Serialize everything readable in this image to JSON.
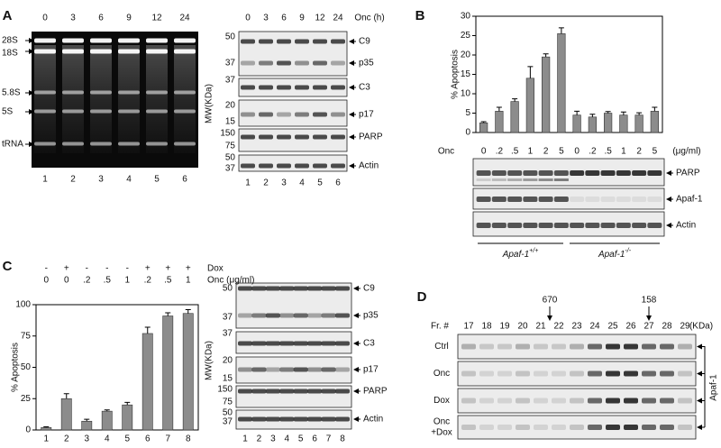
{
  "panel_labels": [
    "A",
    "B",
    "C",
    "D"
  ],
  "panel_a": {
    "gel": {
      "lanes_top": [
        "0",
        "3",
        "6",
        "9",
        "12",
        "24"
      ],
      "rna_labels": [
        "28S",
        "18S",
        "5.8S",
        "5S",
        "tRNA"
      ],
      "lanes_bottom": [
        "1",
        "2",
        "3",
        "4",
        "5",
        "6"
      ]
    },
    "western": {
      "header": "Onc (h)",
      "lanes_top": [
        "0",
        "3",
        "6",
        "9",
        "12",
        "24"
      ],
      "mw_label": "MW(KDa)",
      "blots": [
        {
          "markers": [
            "50",
            "37"
          ],
          "proteins": [
            "C9",
            "p35"
          ]
        },
        {
          "markers": [
            "37"
          ],
          "proteins": [
            "C3"
          ]
        },
        {
          "markers": [
            "20",
            "15"
          ],
          "proteins": [
            "p17"
          ]
        },
        {
          "markers": [
            "150",
            "75"
          ],
          "proteins": [
            "PARP"
          ]
        },
        {
          "markers": [
            "50",
            "37"
          ],
          "proteins": [
            "Actin"
          ]
        }
      ],
      "lanes_bottom": [
        "1",
        "2",
        "3",
        "4",
        "5",
        "6"
      ]
    }
  },
  "chart_data": [
    {
      "type": "bar",
      "ylabel": "% Apoptosis",
      "x_row_label": "Onc",
      "x_unit": "(μg/ml)",
      "categories": [
        "0",
        ".2",
        ".5",
        "1",
        "2",
        "5",
        "0",
        ".2",
        ".5",
        "1",
        "2",
        "5"
      ],
      "values": [
        2.5,
        5.5,
        8,
        14,
        19.5,
        25.5,
        4.5,
        4,
        5,
        4.5,
        4.5,
        5.5
      ],
      "errors": [
        0.3,
        1,
        0.7,
        3,
        0.8,
        1.5,
        1,
        0.7,
        0.4,
        0.8,
        0.6,
        1
      ],
      "color": "#8c8c8c",
      "ylim": [
        0,
        30
      ],
      "yticks": [
        0,
        5,
        10,
        15,
        20,
        25,
        30
      ]
    },
    {
      "type": "bar",
      "ylabel": "% Apoptosis",
      "rows": [
        {
          "label": "Dox",
          "values": [
            "-",
            "+",
            "-",
            "-",
            "-",
            "+",
            "+",
            "+"
          ]
        },
        {
          "label": "Onc (μg/ml)",
          "values": [
            "0",
            "0",
            ".2",
            ".5",
            "1",
            ".2",
            ".5",
            "1"
          ]
        }
      ],
      "categories": [
        "1",
        "2",
        "3",
        "4",
        "5",
        "6",
        "7",
        "8"
      ],
      "values": [
        2,
        25,
        7,
        15,
        20,
        77,
        91,
        93
      ],
      "errors": [
        0.5,
        4,
        1.5,
        1,
        2,
        5,
        2.5,
        3
      ],
      "color": "#8c8c8c",
      "ylim": [
        0,
        100
      ],
      "yticks": [
        0,
        25,
        50,
        75,
        100
      ]
    }
  ],
  "panel_b": {
    "blots": [
      "PARP",
      "Apaf-1",
      "Actin"
    ],
    "genotypes": [
      {
        "name": "Apaf-1",
        "sup": "+/+"
      },
      {
        "name": "Apaf-1",
        "sup": "-/-"
      }
    ]
  },
  "panel_c": {
    "western": {
      "mw_label": "MW(KDa)",
      "blots": [
        {
          "markers": [
            "50",
            "37"
          ],
          "proteins": [
            "C9",
            "p35"
          ]
        },
        {
          "markers": [
            "37"
          ],
          "proteins": [
            "C3"
          ]
        },
        {
          "markers": [
            "20",
            "15"
          ],
          "proteins": [
            "p17"
          ]
        },
        {
          "markers": [
            "150",
            "75"
          ],
          "proteins": [
            "PARP"
          ]
        },
        {
          "markers": [
            "50",
            "37"
          ],
          "proteins": [
            "Actin"
          ]
        }
      ],
      "lanes_bottom": [
        "1",
        "2",
        "3",
        "4",
        "5",
        "6",
        "7",
        "8"
      ]
    }
  },
  "panel_d": {
    "fraction_label": "Fr. #",
    "fractions": [
      "17",
      "18",
      "19",
      "20",
      "21",
      "22",
      "23",
      "24",
      "25",
      "26",
      "27",
      "28",
      "29"
    ],
    "size_markers": [
      "670",
      "158"
    ],
    "unit": "(KDa)",
    "rows": [
      [
        "Ctrl"
      ],
      [
        "Onc"
      ],
      [
        "Dox"
      ],
      [
        "Onc",
        "+Dox"
      ]
    ],
    "protein": "Apaf-1"
  }
}
